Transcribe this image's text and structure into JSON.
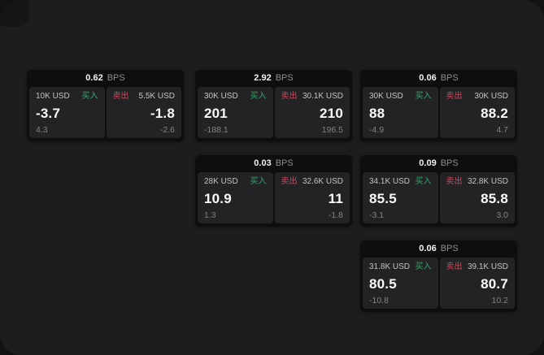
{
  "labels": {
    "bps_suffix": "BPS",
    "buy": "买入",
    "sell": "卖出"
  },
  "colors": {
    "backdrop": "#121212",
    "panel_background": "#1d1d1f",
    "card_background": "#0e0e0f",
    "cell_background": "#232325",
    "buy_green": "#35a76a",
    "sell_red": "#c84a5f",
    "price_text": "#fafafa",
    "muted_text": "#828282",
    "size_label_text": "#c3c3c3"
  },
  "cards": [
    {
      "bps": "0.62",
      "buy": {
        "size": "10K USD",
        "price": "-3.7",
        "delta": "4.3"
      },
      "sell": {
        "size": "5.5K USD",
        "price": "-1.8",
        "delta": "-2.6"
      }
    },
    {
      "bps": "2.92",
      "buy": {
        "size": "30K USD",
        "price": "201",
        "delta": "-188.1"
      },
      "sell": {
        "size": "30.1K USD",
        "price": "210",
        "delta": "196.5"
      }
    },
    {
      "bps": "0.06",
      "buy": {
        "size": "30K USD",
        "price": "88",
        "delta": "-4.9"
      },
      "sell": {
        "size": "30K USD",
        "price": "88.2",
        "delta": "4.7"
      }
    },
    {
      "bps": "0.03",
      "buy": {
        "size": "28K USD",
        "price": "10.9",
        "delta": "1.3"
      },
      "sell": {
        "size": "32.6K USD",
        "price": "11",
        "delta": "-1.8"
      }
    },
    {
      "bps": "0.09",
      "buy": {
        "size": "34.1K USD",
        "price": "85.5",
        "delta": "-3.1"
      },
      "sell": {
        "size": "32.8K USD",
        "price": "85.8",
        "delta": "3.0"
      }
    },
    {
      "bps": "0.06",
      "buy": {
        "size": "31.8K USD",
        "price": "80.5",
        "delta": "-10.8"
      },
      "sell": {
        "size": "39.1K USD",
        "price": "80.7",
        "delta": "10.2"
      }
    }
  ]
}
